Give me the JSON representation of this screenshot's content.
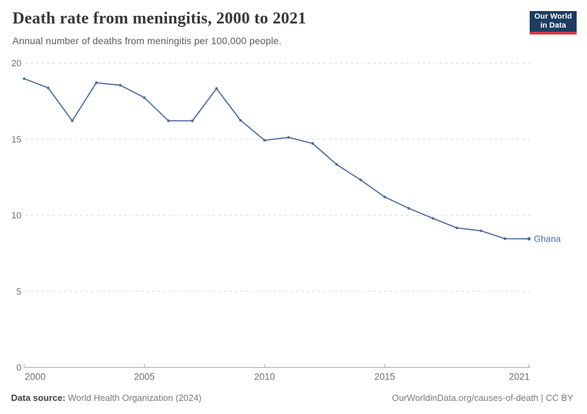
{
  "header": {
    "title": "Death rate from meningitis, 2000 to 2021",
    "subtitle": "Annual number of deaths from meningitis per 100,000 people."
  },
  "logo": {
    "line1": "Our World",
    "line2": "in Data"
  },
  "footer": {
    "source_label": "Data source:",
    "source_value": " World Health Organization (2024)",
    "credit": "OurWorldinData.org/causes-of-death | CC BY"
  },
  "chart_data": {
    "type": "line",
    "title": "Death rate from meningitis, 2000 to 2021",
    "subtitle": "Annual number of deaths from meningitis per 100,000 people.",
    "xlabel": "",
    "ylabel": "",
    "x": [
      2000,
      2001,
      2002,
      2003,
      2004,
      2005,
      2006,
      2007,
      2008,
      2009,
      2010,
      2011,
      2012,
      2013,
      2014,
      2015,
      2016,
      2017,
      2018,
      2019,
      2020,
      2021
    ],
    "series": [
      {
        "name": "Ghana",
        "color": "#4c6a9c",
        "values": [
          18.98,
          18.37,
          16.21,
          18.71,
          18.55,
          17.73,
          16.21,
          16.21,
          18.33,
          16.24,
          14.93,
          15.12,
          14.72,
          13.34,
          12.32,
          11.2,
          10.46,
          9.8,
          9.17,
          8.98,
          8.46,
          8.45
        ]
      }
    ],
    "ylim": [
      0,
      20
    ],
    "yticks": [
      0,
      5,
      10,
      15,
      20
    ],
    "xticks": [
      2000,
      2005,
      2010,
      2015,
      2021
    ],
    "grid": "horizontal-dashed",
    "legend": "line-end-label"
  },
  "colors": {
    "line": "#4c6a9c",
    "grid": "#dedede",
    "axis": "#a6a6a6",
    "tick_text": "#6e6e6e",
    "logo_bg": "#1d3d63",
    "logo_bar": "#d73a49"
  }
}
